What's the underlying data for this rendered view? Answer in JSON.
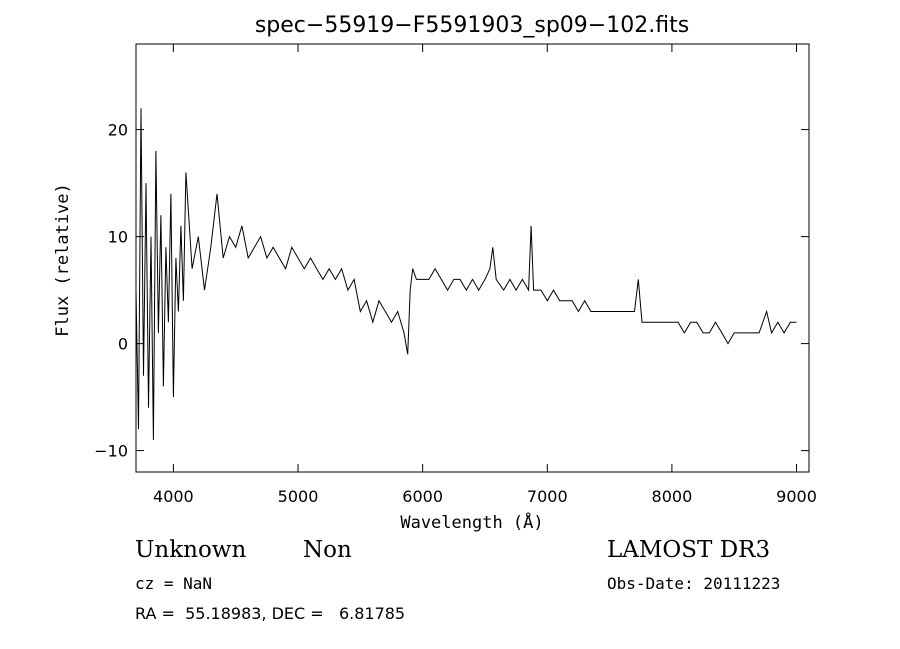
{
  "chart_data": {
    "type": "line",
    "title": "spec−55919−F5591903_sp09−102.fits",
    "xlabel": "Wavelength (Å)",
    "ylabel": "Flux (relative)",
    "xlim": [
      3700,
      9100
    ],
    "ylim": [
      -12,
      28
    ],
    "xticks": [
      4000,
      5000,
      6000,
      7000,
      8000,
      9000
    ],
    "xtick_labels": [
      "4000",
      "5000",
      "6000",
      "7000",
      "8000",
      "9000"
    ],
    "yticks": [
      -10,
      0,
      10,
      20
    ],
    "ytick_labels": [
      "−10",
      "0",
      "10",
      "20"
    ],
    "grid": false,
    "series": [
      {
        "name": "flux",
        "x": [
          3700,
          3720,
          3740,
          3760,
          3780,
          3800,
          3820,
          3840,
          3860,
          3880,
          3900,
          3920,
          3940,
          3960,
          3980,
          4000,
          4020,
          4040,
          4060,
          4080,
          4100,
          4150,
          4200,
          4250,
          4300,
          4350,
          4400,
          4450,
          4500,
          4550,
          4600,
          4650,
          4700,
          4750,
          4800,
          4850,
          4900,
          4950,
          5000,
          5050,
          5100,
          5150,
          5200,
          5250,
          5300,
          5350,
          5400,
          5450,
          5500,
          5550,
          5600,
          5650,
          5700,
          5750,
          5800,
          5850,
          5880,
          5900,
          5920,
          5950,
          6000,
          6050,
          6100,
          6150,
          6200,
          6250,
          6300,
          6350,
          6400,
          6450,
          6500,
          6540,
          6563,
          6590,
          6650,
          6700,
          6750,
          6800,
          6850,
          6870,
          6890,
          6950,
          7000,
          7050,
          7100,
          7150,
          7200,
          7250,
          7300,
          7350,
          7400,
          7450,
          7500,
          7550,
          7600,
          7650,
          7700,
          7730,
          7760,
          7800,
          7850,
          7900,
          7950,
          8000,
          8050,
          8100,
          8150,
          8200,
          8250,
          8300,
          8350,
          8400,
          8450,
          8500,
          8550,
          8600,
          8650,
          8700,
          8760,
          8800,
          8850,
          8900,
          8950,
          9000
        ],
        "y": [
          5,
          -8,
          22,
          -3,
          15,
          -6,
          10,
          -9,
          18,
          1,
          12,
          -4,
          9,
          2,
          14,
          -5,
          8,
          3,
          11,
          4,
          16,
          7,
          10,
          5,
          9,
          14,
          8,
          10,
          9,
          11,
          8,
          9,
          10,
          8,
          9,
          8,
          7,
          9,
          8,
          7,
          8,
          7,
          6,
          7,
          6,
          7,
          5,
          6,
          3,
          4,
          2,
          4,
          3,
          2,
          3,
          1,
          -1,
          5,
          7,
          6,
          6,
          6,
          7,
          6,
          5,
          6,
          6,
          5,
          6,
          5,
          6,
          7,
          9,
          6,
          5,
          6,
          5,
          6,
          5,
          11,
          5,
          5,
          4,
          5,
          4,
          4,
          4,
          3,
          4,
          3,
          3,
          3,
          3,
          3,
          3,
          3,
          3,
          6,
          2,
          2,
          2,
          2,
          2,
          2,
          2,
          1,
          2,
          2,
          1,
          1,
          2,
          1,
          0,
          1,
          1,
          1,
          1,
          1,
          3,
          1,
          2,
          1,
          2,
          2
        ]
      }
    ]
  },
  "info": {
    "object_class": "Unknown",
    "object_subclass": "Non",
    "survey": "LAMOST DR3",
    "cz": "cz = NaN",
    "obs_date": "Obs-Date: 20111223",
    "radec": "RA =  55.18983, DEC =   6.81785"
  }
}
